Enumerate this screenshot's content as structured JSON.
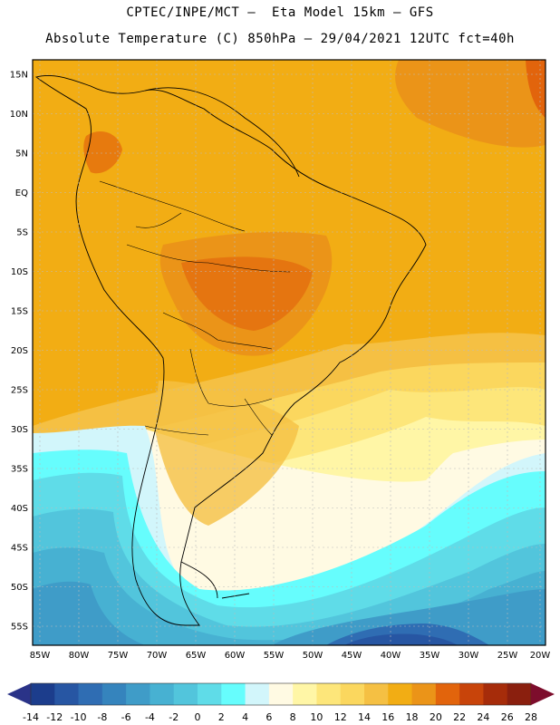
{
  "title": {
    "line1": "CPTEC/INPE/MCT –  Eta Model 15km – GFS",
    "line2": "Absolute Temperature (C) 850hPa – 29/04/2021 12UTC fct=40h"
  },
  "lat_labels": [
    "15N",
    "10N",
    "5N",
    "EQ",
    "5S",
    "10S",
    "15S",
    "20S",
    "25S",
    "30S",
    "35S",
    "40S",
    "45S",
    "50S",
    "55S"
  ],
  "lon_labels": [
    "85W",
    "80W",
    "75W",
    "70W",
    "65W",
    "60W",
    "55W",
    "50W",
    "45W",
    "40W",
    "35W",
    "30W",
    "25W",
    "20W"
  ],
  "colorbar": {
    "labels": [
      "-14",
      "-12",
      "-10",
      "-8",
      "-6",
      "-4",
      "-2",
      "0",
      "2",
      "4",
      "6",
      "8",
      "10",
      "12",
      "14",
      "16",
      "18",
      "20",
      "22",
      "24",
      "26",
      "28"
    ],
    "colors": [
      "#1c3d8c",
      "#2756a3",
      "#2f6db3",
      "#3584bd",
      "#3f9cc8",
      "#47b1d2",
      "#52c5dc",
      "#5fdce8",
      "#66fdfd",
      "#d2f6fb",
      "#fffae3",
      "#fff6a6",
      "#fde67a",
      "#fbd75e",
      "#f5c043",
      "#f2ad14",
      "#eb9418",
      "#e2640c",
      "#c8440a",
      "#a62c0a",
      "#8a1f0e"
    ],
    "left_arrow_color": "#2a3388",
    "right_arrow_color": "#7d0d2c"
  }
}
